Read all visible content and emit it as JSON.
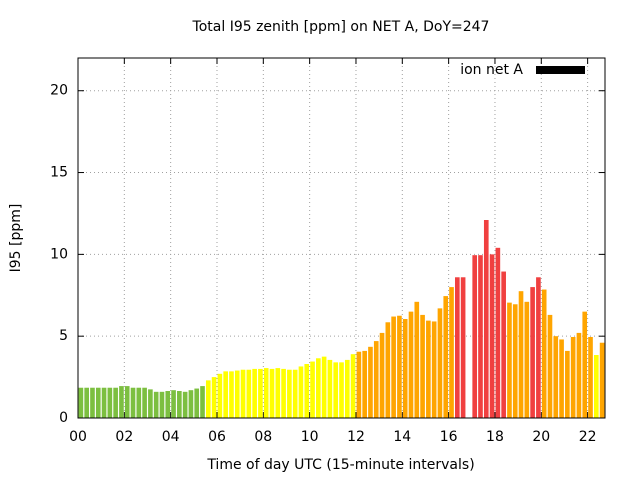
{
  "chart_data": {
    "type": "bar",
    "title": "Total I95 zenith [ppm] on NET A, DoY=247",
    "x_label": "Time of day UTC (15-minute intervals)",
    "y_label": "I95 [ppm]",
    "x": [
      0.125,
      0.375,
      0.625,
      0.875,
      1.125,
      1.375,
      1.625,
      1.875,
      2.125,
      2.375,
      2.625,
      2.875,
      3.125,
      3.375,
      3.625,
      3.875,
      4.125,
      4.375,
      4.625,
      4.875,
      5.125,
      5.375,
      5.625,
      5.875,
      6.125,
      6.375,
      6.625,
      6.875,
      7.125,
      7.375,
      7.625,
      7.875,
      8.125,
      8.375,
      8.625,
      8.875,
      9.125,
      9.375,
      9.625,
      9.875,
      10.125,
      10.375,
      10.625,
      10.875,
      11.125,
      11.375,
      11.625,
      11.875,
      12.125,
      12.375,
      12.625,
      12.875,
      13.125,
      13.375,
      13.625,
      13.875,
      14.125,
      14.375,
      14.625,
      14.875,
      15.125,
      15.375,
      15.625,
      15.875,
      16.125,
      16.375,
      16.625,
      16.875,
      17.125,
      17.375,
      17.625,
      17.875,
      18.125,
      18.375,
      18.625,
      18.875,
      19.125,
      19.375,
      19.625,
      19.875,
      20.125,
      20.375,
      20.625,
      20.875,
      21.125,
      21.375,
      21.625,
      21.875,
      22.125,
      22.375,
      22.625
    ],
    "series": [
      {
        "name": "ion net A",
        "color": "#000000",
        "values": [
          1.85,
          1.85,
          1.85,
          1.85,
          1.85,
          1.85,
          1.85,
          1.95,
          1.95,
          1.85,
          1.85,
          1.85,
          1.75,
          1.6,
          1.6,
          1.65,
          1.7,
          1.65,
          1.6,
          1.7,
          1.8,
          1.95,
          2.3,
          2.5,
          2.7,
          2.85,
          2.85,
          2.9,
          2.95,
          2.95,
          3.0,
          3.0,
          3.05,
          3.0,
          3.05,
          3.0,
          2.95,
          2.95,
          3.15,
          3.3,
          3.45,
          3.65,
          3.75,
          3.55,
          3.4,
          3.4,
          3.55,
          3.9,
          4.05,
          4.1,
          4.35,
          4.7,
          5.2,
          5.85,
          6.2,
          6.25,
          6.05,
          6.5,
          7.1,
          6.3,
          5.95,
          5.9,
          6.7,
          7.45,
          8.0,
          8.6,
          8.6,
          null,
          9.95,
          9.95,
          12.1,
          10.0,
          10.4,
          8.95,
          7.05,
          6.95,
          7.75,
          7.1,
          8.0,
          8.6,
          7.85,
          6.3,
          5.0,
          4.8,
          4.1,
          4.95,
          5.2,
          6.5,
          4.95,
          3.85,
          4.6
        ],
        "colors": [
          "#7cbf40",
          "#7cbf40",
          "#7cbf40",
          "#7cbf40",
          "#7cbf40",
          "#7cbf40",
          "#7cbf40",
          "#7cbf40",
          "#7cbf40",
          "#7cbf40",
          "#7cbf40",
          "#7cbf40",
          "#7cbf40",
          "#7cbf40",
          "#7cbf40",
          "#7cbf40",
          "#7cbf40",
          "#7cbf40",
          "#7cbf40",
          "#7cbf40",
          "#7cbf40",
          "#7cbf40",
          "#ffff00",
          "#ffff00",
          "#ffff00",
          "#ffff00",
          "#ffff00",
          "#ffff00",
          "#ffff00",
          "#ffff00",
          "#ffff00",
          "#ffff00",
          "#ffff00",
          "#ffff00",
          "#ffff00",
          "#ffff00",
          "#ffff00",
          "#ffff00",
          "#ffff00",
          "#ffff00",
          "#ffff00",
          "#ffff00",
          "#ffff00",
          "#ffff00",
          "#ffff00",
          "#ffff00",
          "#ffff00",
          "#ffff00",
          "#ffa500",
          "#ffa500",
          "#ffa500",
          "#ffa500",
          "#ffa500",
          "#ffa500",
          "#ffa500",
          "#ffa500",
          "#ffa500",
          "#ffa500",
          "#ffa500",
          "#ffa500",
          "#ffa500",
          "#ffa500",
          "#ffa500",
          "#ffa500",
          "#ffa500",
          "#f04040",
          "#f04040",
          null,
          "#f04040",
          "#f04040",
          "#f04040",
          "#f04040",
          "#f04040",
          "#f04040",
          "#ffa500",
          "#ffa500",
          "#ffa500",
          "#ffa500",
          "#f04040",
          "#f04040",
          "#ffa500",
          "#ffa500",
          "#ffa500",
          "#ffa500",
          "#ffa500",
          "#ffa500",
          "#ffa500",
          "#ffa500",
          "#ffa500",
          "#ffff00",
          "#ffa500"
        ]
      }
    ],
    "xlim": [
      0,
      22.75
    ],
    "ylim": [
      0,
      22
    ],
    "xticks": [
      {
        "value": 0,
        "label": "00"
      },
      {
        "value": 2,
        "label": "02"
      },
      {
        "value": 4,
        "label": "04"
      },
      {
        "value": 6,
        "label": "06"
      },
      {
        "value": 8,
        "label": "08"
      },
      {
        "value": 10,
        "label": "10"
      },
      {
        "value": 12,
        "label": "12"
      },
      {
        "value": 14,
        "label": "14"
      },
      {
        "value": 16,
        "label": "16"
      },
      {
        "value": 18,
        "label": "18"
      },
      {
        "value": 20,
        "label": "20"
      },
      {
        "value": 22,
        "label": "22"
      }
    ],
    "yticks": [
      0,
      5,
      10,
      15,
      20
    ],
    "grid": true,
    "legend": "top-right"
  }
}
